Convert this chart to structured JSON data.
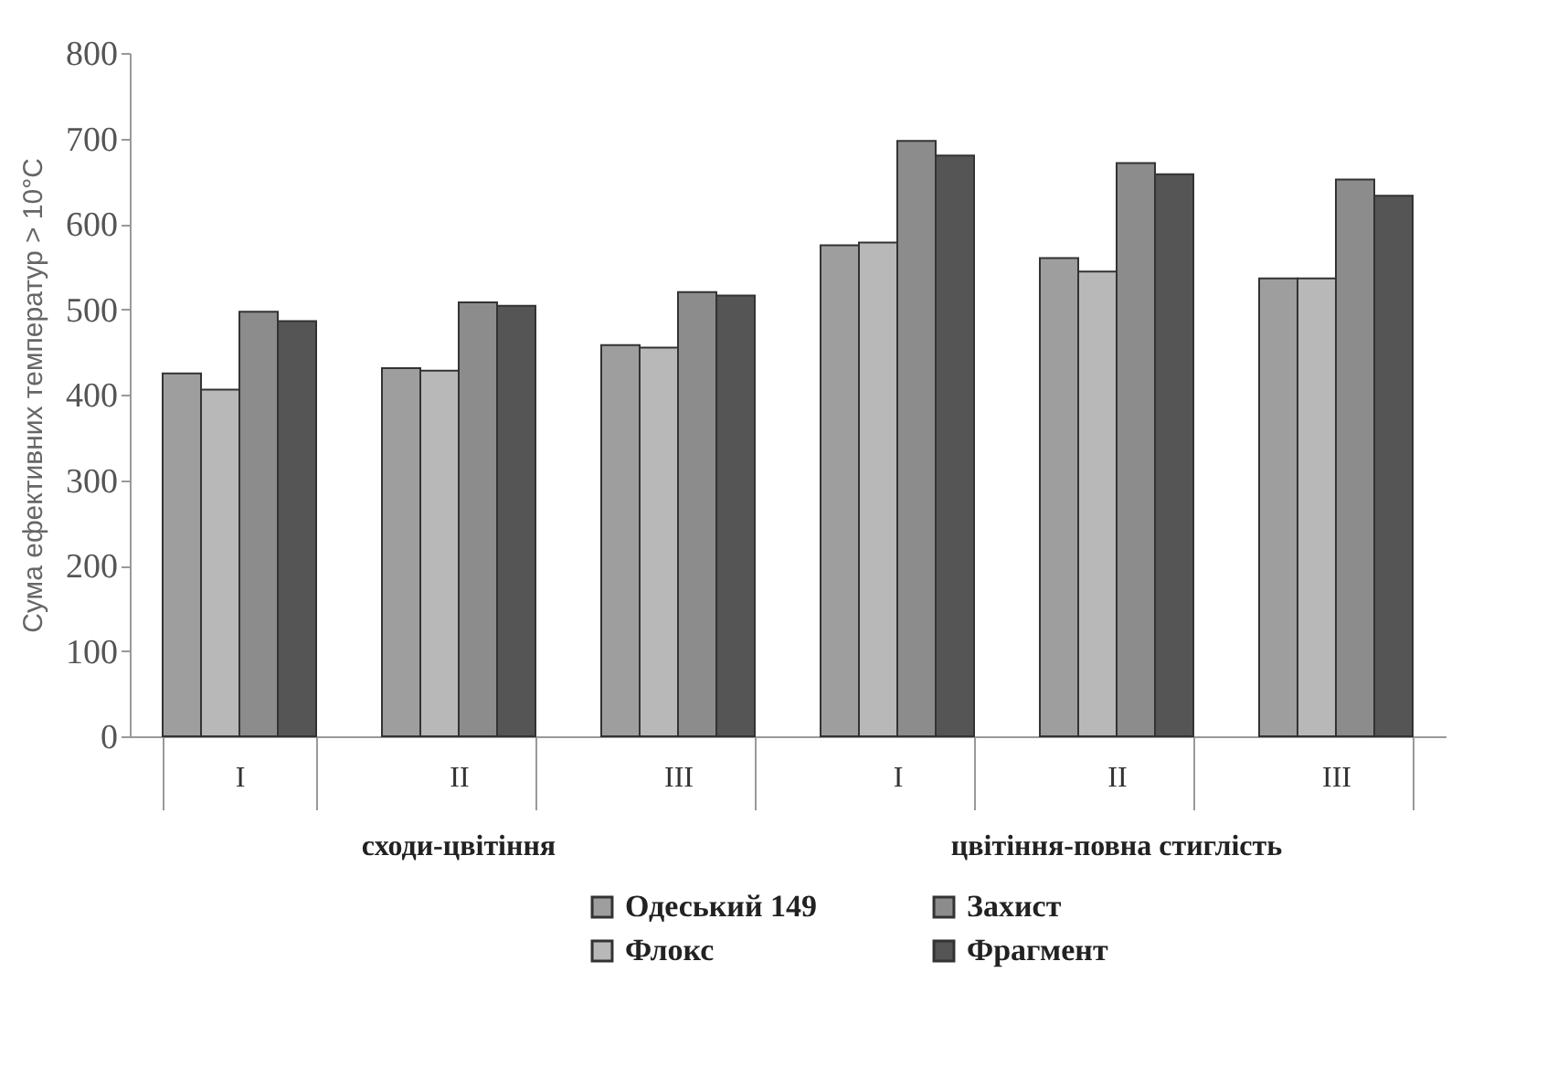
{
  "chart_data": {
    "type": "bar",
    "ylabel": "Сума ефективних температур > 10°С",
    "categories": [
      "I",
      "II",
      "III",
      "I",
      "II",
      "III"
    ],
    "series": [
      {
        "name": "Одеський 149",
        "color": "#9e9e9e",
        "values": [
          425,
          431,
          458,
          575,
          560,
          536
        ]
      },
      {
        "name": "Флокс",
        "color": "#b8b8b8",
        "values": [
          406,
          428,
          455,
          578,
          544,
          536
        ]
      },
      {
        "name": "Захист",
        "color": "#8c8c8c",
        "values": [
          497,
          508,
          520,
          697,
          671,
          652
        ]
      },
      {
        "name": "Фрагмент",
        "color": "#555555",
        "values": [
          486,
          504,
          516,
          680,
          658,
          633
        ]
      }
    ],
    "annotations": [
      "сходи-цвітіння",
      "цвітіння-повна стиглість"
    ],
    "ylim": [
      0,
      800
    ],
    "yticks": [
      0,
      100,
      200,
      300,
      400,
      500,
      600,
      700,
      800
    ],
    "grid": false,
    "legend": "bottom"
  }
}
